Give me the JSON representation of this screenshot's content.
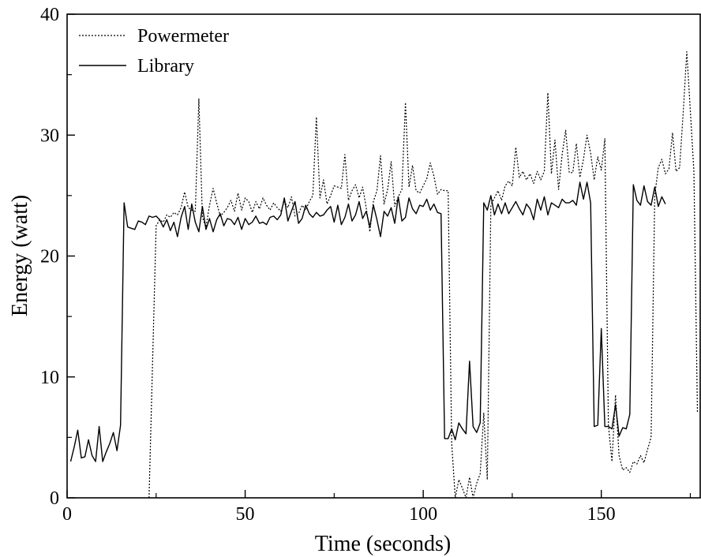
{
  "chart_data": {
    "type": "line",
    "xlabel": "Time (seconds)",
    "ylabel": "Energy (watt)",
    "xlim": [
      0,
      178
    ],
    "ylim": [
      0,
      40
    ],
    "xticks": [
      0,
      50,
      100,
      150
    ],
    "xticklabels": [
      "0",
      "50",
      "100",
      "150"
    ],
    "yticks": [
      0,
      10,
      20,
      30,
      40
    ],
    "yticklabels": [
      "0",
      "10",
      "20",
      "30",
      "40"
    ],
    "grid": false,
    "legend": "top-left",
    "series": [
      {
        "name": "Powermeter",
        "style": "dotted",
        "color": "#000000",
        "points": [
          [
            23,
            0
          ],
          [
            25,
            22.5
          ],
          [
            26,
            23.0
          ],
          [
            27,
            22.8
          ],
          [
            28,
            23.4
          ],
          [
            29,
            23.2
          ],
          [
            30,
            23.6
          ],
          [
            31,
            23.4
          ],
          [
            32,
            24.0
          ],
          [
            33,
            25.3
          ],
          [
            34,
            24.0
          ],
          [
            35,
            23.8
          ],
          [
            36,
            23.7
          ],
          [
            37,
            33.0
          ],
          [
            38,
            23.2
          ],
          [
            39,
            22.4
          ],
          [
            40,
            24.2
          ],
          [
            41,
            25.6
          ],
          [
            42,
            24.4
          ],
          [
            43,
            23.3
          ],
          [
            44,
            23.6
          ],
          [
            45,
            24.0
          ],
          [
            46,
            24.6
          ],
          [
            47,
            23.7
          ],
          [
            48,
            25.2
          ],
          [
            49,
            23.8
          ],
          [
            50,
            24.8
          ],
          [
            51,
            24.5
          ],
          [
            52,
            23.6
          ],
          [
            53,
            24.5
          ],
          [
            54,
            23.9
          ],
          [
            55,
            24.8
          ],
          [
            56,
            24.2
          ],
          [
            57,
            23.8
          ],
          [
            58,
            24.4
          ],
          [
            59,
            24.0
          ],
          [
            60,
            23.7
          ],
          [
            61,
            24.5
          ],
          [
            62,
            24.0
          ],
          [
            63,
            24.9
          ],
          [
            64,
            23.3
          ],
          [
            65,
            23.5
          ],
          [
            66,
            24.2
          ],
          [
            67,
            23.8
          ],
          [
            68,
            24.5
          ],
          [
            69,
            25.0
          ],
          [
            70,
            31.5
          ],
          [
            71,
            24.8
          ],
          [
            72,
            26.3
          ],
          [
            73,
            24.3
          ],
          [
            74,
            25.0
          ],
          [
            75,
            25.8
          ],
          [
            76,
            25.7
          ],
          [
            77,
            25.6
          ],
          [
            78,
            28.4
          ],
          [
            79,
            24.6
          ],
          [
            80,
            25.4
          ],
          [
            81,
            25.9
          ],
          [
            82,
            24.8
          ],
          [
            83,
            25.7
          ],
          [
            84,
            24.0
          ],
          [
            85,
            22.0
          ],
          [
            86,
            24.5
          ],
          [
            87,
            25.4
          ],
          [
            88,
            28.3
          ],
          [
            89,
            24.3
          ],
          [
            90,
            25.5
          ],
          [
            91,
            27.8
          ],
          [
            92,
            24.1
          ],
          [
            93,
            24.9
          ],
          [
            94,
            25.5
          ],
          [
            95,
            32.7
          ],
          [
            96,
            25.7
          ],
          [
            97,
            27.5
          ],
          [
            98,
            25.4
          ],
          [
            99,
            25.2
          ],
          [
            100,
            25.8
          ],
          [
            101,
            26.4
          ],
          [
            102,
            27.7
          ],
          [
            103,
            26.6
          ],
          [
            104,
            25.1
          ],
          [
            105,
            25.5
          ],
          [
            106,
            25.4
          ],
          [
            107,
            25.4
          ],
          [
            108,
            4.5
          ],
          [
            109,
            0
          ],
          [
            110,
            1.5
          ],
          [
            111,
            0.8
          ],
          [
            112,
            0
          ],
          [
            113,
            1.7
          ],
          [
            114,
            0
          ],
          [
            115,
            1.2
          ],
          [
            116,
            2.0
          ],
          [
            117,
            7.0
          ],
          [
            118,
            1.5
          ],
          [
            119,
            24.2
          ],
          [
            120,
            24.8
          ],
          [
            121,
            25.4
          ],
          [
            122,
            24.6
          ],
          [
            123,
            25.8
          ],
          [
            124,
            26.2
          ],
          [
            125,
            25.8
          ],
          [
            126,
            29.0
          ],
          [
            127,
            26.5
          ],
          [
            128,
            27.0
          ],
          [
            129,
            26.3
          ],
          [
            130,
            26.8
          ],
          [
            131,
            26.0
          ],
          [
            132,
            27.0
          ],
          [
            133,
            26.3
          ],
          [
            134,
            27.0
          ],
          [
            135,
            33.5
          ],
          [
            136,
            26.8
          ],
          [
            137,
            29.6
          ],
          [
            138,
            25.5
          ],
          [
            139,
            28.4
          ],
          [
            140,
            30.4
          ],
          [
            141,
            26.9
          ],
          [
            142,
            26.9
          ],
          [
            143,
            29.3
          ],
          [
            144,
            26.5
          ],
          [
            145,
            28.0
          ],
          [
            146,
            30.0
          ],
          [
            147,
            28.5
          ],
          [
            148,
            26.3
          ],
          [
            149,
            28.2
          ],
          [
            150,
            27.1
          ],
          [
            151,
            29.7
          ],
          [
            152,
            6.0
          ],
          [
            153,
            3.0
          ],
          [
            154,
            8.5
          ],
          [
            155,
            3.5
          ],
          [
            156,
            2.3
          ],
          [
            157,
            2.5
          ],
          [
            158,
            2.1
          ],
          [
            159,
            3.0
          ],
          [
            160,
            2.8
          ],
          [
            161,
            3.5
          ],
          [
            162,
            2.9
          ],
          [
            163,
            4.0
          ],
          [
            164,
            5.0
          ],
          [
            165,
            25.0
          ],
          [
            166,
            27.3
          ],
          [
            167,
            28.0
          ],
          [
            168,
            26.8
          ],
          [
            169,
            27.2
          ],
          [
            170,
            30.2
          ],
          [
            171,
            27.0
          ],
          [
            172,
            27.3
          ],
          [
            173,
            31.8
          ],
          [
            174,
            36.9
          ],
          [
            175,
            32.0
          ],
          [
            176,
            27.0
          ],
          [
            177,
            7.0
          ]
        ]
      },
      {
        "name": "Library",
        "style": "solid",
        "color": "#000000",
        "points": [
          [
            1,
            3.0
          ],
          [
            2,
            4.2
          ],
          [
            3,
            5.6
          ],
          [
            4,
            3.3
          ],
          [
            5,
            3.4
          ],
          [
            6,
            4.8
          ],
          [
            7,
            3.5
          ],
          [
            8,
            3.0
          ],
          [
            9,
            5.9
          ],
          [
            10,
            3.0
          ],
          [
            11,
            3.8
          ],
          [
            12,
            4.5
          ],
          [
            13,
            5.4
          ],
          [
            14,
            3.9
          ],
          [
            15,
            6.0
          ],
          [
            16,
            24.4
          ],
          [
            17,
            22.4
          ],
          [
            18,
            22.3
          ],
          [
            19,
            22.2
          ],
          [
            20,
            22.9
          ],
          [
            21,
            22.8
          ],
          [
            22,
            22.6
          ],
          [
            23,
            23.3
          ],
          [
            24,
            23.2
          ],
          [
            25,
            23.3
          ],
          [
            26,
            23.0
          ],
          [
            27,
            22.4
          ],
          [
            28,
            23.0
          ],
          [
            29,
            22.1
          ],
          [
            30,
            22.8
          ],
          [
            31,
            21.6
          ],
          [
            32,
            23.2
          ],
          [
            33,
            24.1
          ],
          [
            34,
            22.2
          ],
          [
            35,
            24.3
          ],
          [
            36,
            22.8
          ],
          [
            37,
            22.0
          ],
          [
            38,
            24.1
          ],
          [
            39,
            22.2
          ],
          [
            40,
            23.1
          ],
          [
            41,
            22.0
          ],
          [
            42,
            23.0
          ],
          [
            43,
            23.5
          ],
          [
            44,
            22.5
          ],
          [
            45,
            23.1
          ],
          [
            46,
            23.0
          ],
          [
            47,
            22.6
          ],
          [
            48,
            23.2
          ],
          [
            49,
            22.2
          ],
          [
            50,
            23.1
          ],
          [
            51,
            22.6
          ],
          [
            52,
            22.8
          ],
          [
            53,
            23.3
          ],
          [
            54,
            22.7
          ],
          [
            55,
            22.8
          ],
          [
            56,
            22.6
          ],
          [
            57,
            23.2
          ],
          [
            58,
            23.3
          ],
          [
            59,
            23.0
          ],
          [
            60,
            23.4
          ],
          [
            61,
            24.8
          ],
          [
            62,
            22.9
          ],
          [
            63,
            23.7
          ],
          [
            64,
            24.5
          ],
          [
            65,
            22.7
          ],
          [
            66,
            23.1
          ],
          [
            67,
            24.2
          ],
          [
            68,
            23.5
          ],
          [
            69,
            23.2
          ],
          [
            70,
            23.6
          ],
          [
            71,
            23.3
          ],
          [
            72,
            23.4
          ],
          [
            73,
            23.8
          ],
          [
            74,
            24.1
          ],
          [
            75,
            22.8
          ],
          [
            76,
            24.2
          ],
          [
            77,
            22.6
          ],
          [
            78,
            23.2
          ],
          [
            79,
            24.3
          ],
          [
            80,
            22.9
          ],
          [
            81,
            23.4
          ],
          [
            82,
            24.5
          ],
          [
            83,
            23.1
          ],
          [
            84,
            23.7
          ],
          [
            85,
            22.4
          ],
          [
            86,
            24.2
          ],
          [
            87,
            23.0
          ],
          [
            88,
            21.6
          ],
          [
            89,
            23.7
          ],
          [
            90,
            23.3
          ],
          [
            91,
            24.0
          ],
          [
            92,
            22.7
          ],
          [
            93,
            24.9
          ],
          [
            94,
            22.9
          ],
          [
            95,
            23.2
          ],
          [
            96,
            24.8
          ],
          [
            97,
            23.9
          ],
          [
            98,
            23.5
          ],
          [
            99,
            24.2
          ],
          [
            100,
            24.1
          ],
          [
            101,
            24.7
          ],
          [
            102,
            23.8
          ],
          [
            103,
            24.3
          ],
          [
            104,
            23.6
          ],
          [
            105,
            23.5
          ],
          [
            106,
            4.9
          ],
          [
            107,
            4.9
          ],
          [
            108,
            5.7
          ],
          [
            109,
            4.8
          ],
          [
            110,
            6.2
          ],
          [
            111,
            5.7
          ],
          [
            112,
            5.3
          ],
          [
            113,
            11.3
          ],
          [
            114,
            5.9
          ],
          [
            115,
            5.4
          ],
          [
            116,
            6.2
          ],
          [
            117,
            24.4
          ],
          [
            118,
            23.8
          ],
          [
            119,
            25.0
          ],
          [
            120,
            23.4
          ],
          [
            121,
            24.3
          ],
          [
            122,
            23.5
          ],
          [
            123,
            24.4
          ],
          [
            124,
            23.5
          ],
          [
            125,
            24.0
          ],
          [
            126,
            24.5
          ],
          [
            127,
            23.9
          ],
          [
            128,
            23.4
          ],
          [
            129,
            24.3
          ],
          [
            130,
            23.9
          ],
          [
            131,
            23.0
          ],
          [
            132,
            24.7
          ],
          [
            133,
            23.8
          ],
          [
            134,
            24.9
          ],
          [
            135,
            23.4
          ],
          [
            136,
            24.4
          ],
          [
            137,
            24.2
          ],
          [
            138,
            24.0
          ],
          [
            139,
            24.7
          ],
          [
            140,
            24.4
          ],
          [
            141,
            24.4
          ],
          [
            142,
            24.6
          ],
          [
            143,
            24.2
          ],
          [
            144,
            26.1
          ],
          [
            145,
            24.7
          ],
          [
            146,
            26.1
          ],
          [
            147,
            24.4
          ],
          [
            148,
            5.9
          ],
          [
            149,
            6.0
          ],
          [
            150,
            14.0
          ],
          [
            151,
            5.9
          ],
          [
            152,
            5.9
          ],
          [
            153,
            5.7
          ],
          [
            154,
            7.7
          ],
          [
            155,
            5.1
          ],
          [
            156,
            5.8
          ],
          [
            157,
            5.7
          ],
          [
            158,
            6.9
          ],
          [
            159,
            25.9
          ],
          [
            160,
            24.6
          ],
          [
            161,
            24.2
          ],
          [
            162,
            25.8
          ],
          [
            163,
            24.5
          ],
          [
            164,
            24.2
          ],
          [
            165,
            25.7
          ],
          [
            166,
            24.1
          ],
          [
            167,
            24.9
          ],
          [
            168,
            24.3
          ]
        ]
      }
    ]
  }
}
